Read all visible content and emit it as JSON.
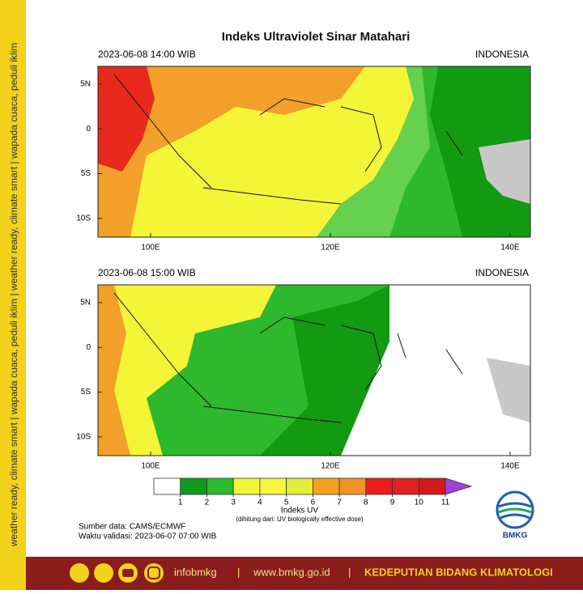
{
  "side_text": "weather ready, climate smart | wapada cuaca, peduli iklim | weather ready, climate smart | wapada cuaca, peduli iklim",
  "title": "Indeks Ultraviolet Sinar Matahari",
  "panels": [
    {
      "time": "2023-06-08  14:00 WIB",
      "region": "INDONESIA"
    },
    {
      "time": "2023-06-08  15:00 WIB",
      "region": "INDONESIA"
    }
  ],
  "lat_labels": [
    "5N",
    "0",
    "5S",
    "10S"
  ],
  "lon_labels": [
    "100E",
    "120E",
    "140E"
  ],
  "colorbar": {
    "ticks": [
      1,
      2,
      3,
      4,
      5,
      6,
      7,
      8,
      9,
      10,
      11
    ],
    "colors": [
      "#ffffff",
      "#0f9a1e",
      "#2dbb2d",
      "#f2f536",
      "#f7f73e",
      "#e3ec3a",
      "#f5a21f",
      "#ef9428",
      "#ec1c1c",
      "#e2201f",
      "#d3191b"
    ],
    "arrow_color": "#a040d8",
    "label": "Indeks UV",
    "note": "(dihitung dari: UV biologically effective dose)"
  },
  "source": "Sumber data: CAMS/ECMWF",
  "valid": "Waktu validasi: 2023-06-07 07:00 WIB",
  "logo": "BMKG",
  "footer": {
    "social": "infobmkg",
    "separator": "|",
    "website": "www.bmkg.go.id",
    "unit": "KEDEPUTIAN BIDANG KLIMATOLOGI"
  }
}
